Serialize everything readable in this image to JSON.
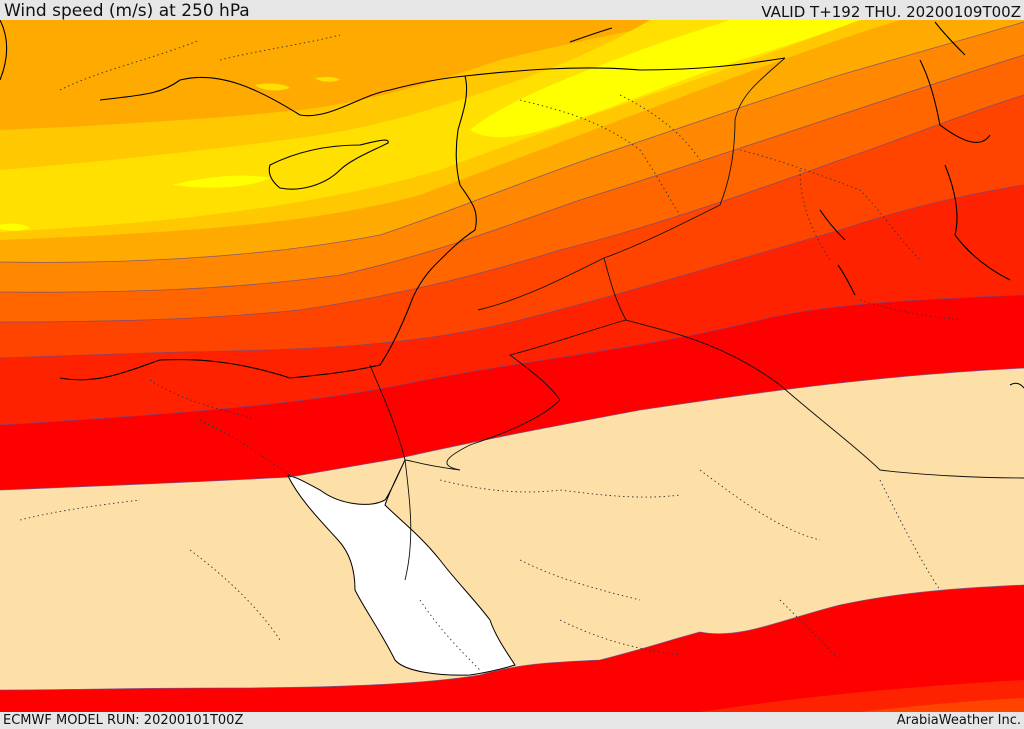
{
  "header": {
    "title": "Wind speed (m/s) at 250 hPa",
    "valid": "VALID T+192 THU. 20200109T00Z"
  },
  "footer": {
    "model_run": "ECMWF MODEL RUN: 20200101T00Z",
    "credit": "ArabiaWeather Inc."
  },
  "colors": {
    "band_lightest": "#fde0a8",
    "band_yellow_bright": "#ffff00",
    "band_yellow": "#ffe000",
    "band_gold": "#ffc800",
    "band_amber": "#ffaa00",
    "band_orange": "#ff8800",
    "band_dark_orange": "#ff6600",
    "band_red_orange": "#ff4400",
    "band_scarlet": "#ff2200",
    "band_red": "#ff0000",
    "sea": "#ffffff"
  }
}
